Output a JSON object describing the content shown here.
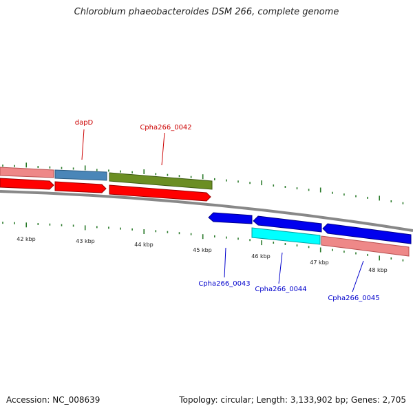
{
  "title": "Chlorobium phaeobacteroides DSM 266, complete genome",
  "footer": {
    "accession": "Accession: NC_008639",
    "summary": "Topology: circular; Length: 3,133,902 bp; Genes: 2,705"
  },
  "gene_labels": [
    {
      "id": "dapD",
      "text": "dapD",
      "color": "#cc0000"
    },
    {
      "id": "cpha266-0042",
      "text": "Cpha266_0042",
      "color": "#cc0000"
    },
    {
      "id": "cpha266-0043",
      "text": "Cpha266_0043",
      "color": "#0000cc"
    },
    {
      "id": "cpha266-0044",
      "text": "Cpha266_0044",
      "color": "#0000cc"
    },
    {
      "id": "cpha266-0045",
      "text": "Cpha266_0045",
      "color": "#0000cc"
    }
  ],
  "position_labels": [
    "42 kbp",
    "43 kbp",
    "44 kbp",
    "45 kbp",
    "46 kbp",
    "47 kbp",
    "48 kbp"
  ],
  "colors": {
    "backbone": "#888888",
    "tick": "#2a7a2a",
    "forward_cds": "#ff0000",
    "reverse_cds": "#0000ee",
    "pink_feature": "#ee8888",
    "steelblue_feature": "#4a86b8",
    "olive_feature": "#6b8e23",
    "cyan_feature": "#00ffff"
  }
}
